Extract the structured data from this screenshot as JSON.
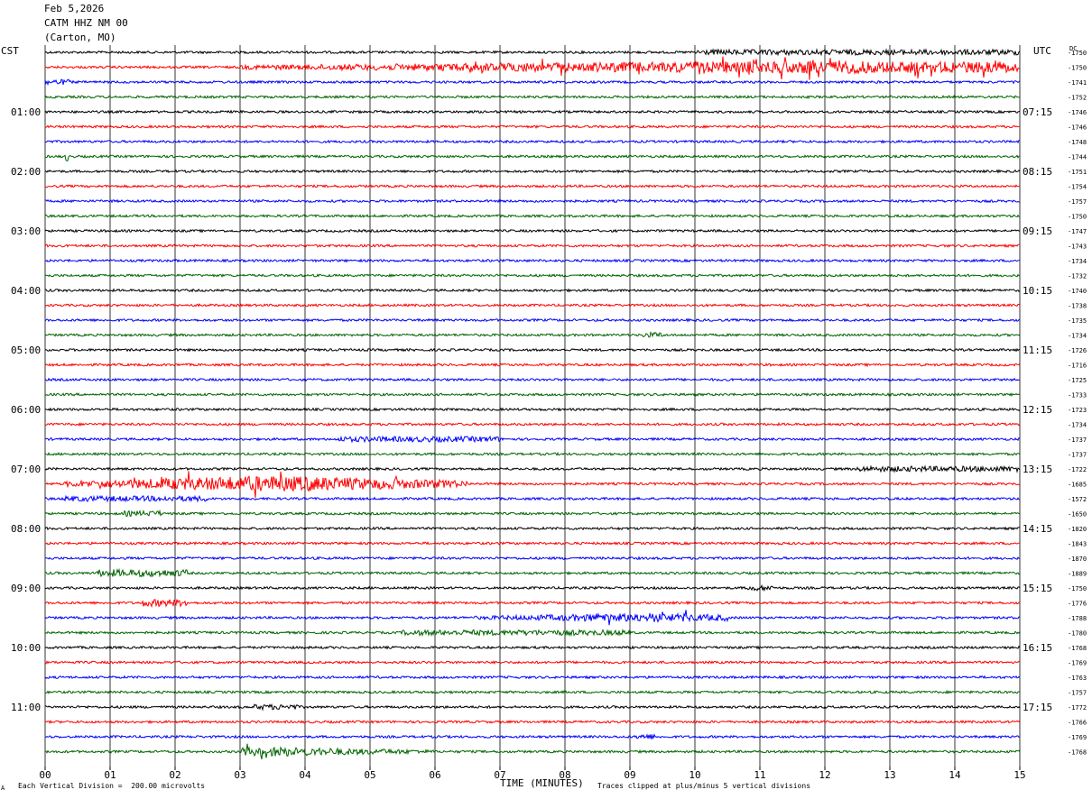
{
  "header": {
    "date": "Feb 5,2026",
    "station": "CATM HHZ NM 00",
    "location": "(Carton, MO)"
  },
  "left_zone_label": "CST",
  "right_zone_label": "UTC",
  "dc_label": "DC",
  "footer": {
    "vertical_division": "Each Vertical Division =  200.00 microvolts",
    "clip_note": "Traces clipped at plus/minus 5 vertical divisions",
    "corner_mark": "A"
  },
  "colors": {
    "trace_cycle": [
      "#000000",
      "#ff0000",
      "#0000ff",
      "#006400"
    ],
    "grid": "#000000",
    "background": "#ffffff"
  },
  "chart_data": {
    "type": "line",
    "title": "",
    "xlabel": "TIME (MINUTES)",
    "x_ticks": [
      "00",
      "01",
      "02",
      "03",
      "04",
      "05",
      "06",
      "07",
      "08",
      "09",
      "10",
      "11",
      "12",
      "13",
      "14",
      "15"
    ],
    "xlim": [
      0,
      15
    ],
    "left_time_labels": [
      "01:00",
      "02:00",
      "03:00",
      "04:00",
      "05:00",
      "06:00",
      "07:00",
      "08:00",
      "09:00",
      "10:00",
      "11:00"
    ],
    "right_time_labels": [
      "07:15",
      "08:15",
      "09:15",
      "10:15",
      "11:15",
      "12:15",
      "13:15",
      "14:15",
      "15:15",
      "16:15",
      "17:15"
    ],
    "dc_offsets": [
      -1750,
      -1750,
      -1741,
      -1752,
      -1746,
      -1746,
      -1748,
      -1744,
      -1751,
      -1754,
      -1757,
      -1750,
      -1747,
      -1743,
      -1734,
      -1732,
      -1740,
      -1738,
      -1735,
      -1734,
      -1726,
      -1716,
      -1725,
      -1733,
      -1723,
      -1734,
      -1737,
      -1737,
      -1722,
      -1685,
      -1572,
      -1650,
      -1820,
      -1843,
      -1870,
      -1889,
      -1750,
      -1776,
      -1788,
      -1780,
      -1768,
      -1769,
      -1763,
      -1757,
      -1772,
      -1766,
      -1769,
      -1768
    ],
    "bursts": [
      {
        "trace": 0,
        "x0": 10.0,
        "x1": 15.0,
        "amp": 3
      },
      {
        "trace": 1,
        "x0": 3.0,
        "x1": 15.0,
        "amp": 7,
        "peak": 12.0
      },
      {
        "trace": 2,
        "x0": 0.0,
        "x1": 0.4,
        "amp": 3
      },
      {
        "trace": 7,
        "x0": 0.3,
        "x1": 0.35,
        "amp": 5
      },
      {
        "trace": 19,
        "x0": 9.2,
        "x1": 9.5,
        "amp": 3
      },
      {
        "trace": 26,
        "x0": 4.5,
        "x1": 7.0,
        "amp": 3
      },
      {
        "trace": 28,
        "x0": 12.5,
        "x1": 15.0,
        "amp": 3
      },
      {
        "trace": 29,
        "x0": 0.3,
        "x1": 6.5,
        "amp": 9,
        "peak": 3.5
      },
      {
        "trace": 30,
        "x0": 0.3,
        "x1": 2.5,
        "amp": 3
      },
      {
        "trace": 31,
        "x0": 1.2,
        "x1": 1.8,
        "amp": 3
      },
      {
        "trace": 35,
        "x0": 0.8,
        "x1": 2.2,
        "amp": 4
      },
      {
        "trace": 36,
        "x0": 10.8,
        "x1": 11.2,
        "amp": 3
      },
      {
        "trace": 37,
        "x0": 1.5,
        "x1": 2.2,
        "amp": 4
      },
      {
        "trace": 38,
        "x0": 6.5,
        "x1": 10.5,
        "amp": 5,
        "peak": 9.2
      },
      {
        "trace": 39,
        "x0": 5.5,
        "x1": 9.0,
        "amp": 3
      },
      {
        "trace": 44,
        "x0": 3.2,
        "x1": 3.9,
        "amp": 3
      },
      {
        "trace": 46,
        "x0": 9.1,
        "x1": 9.4,
        "amp": 3
      },
      {
        "trace": 47,
        "x0": 3.0,
        "x1": 6.0,
        "amp": 5,
        "peak": 3.6
      }
    ]
  }
}
